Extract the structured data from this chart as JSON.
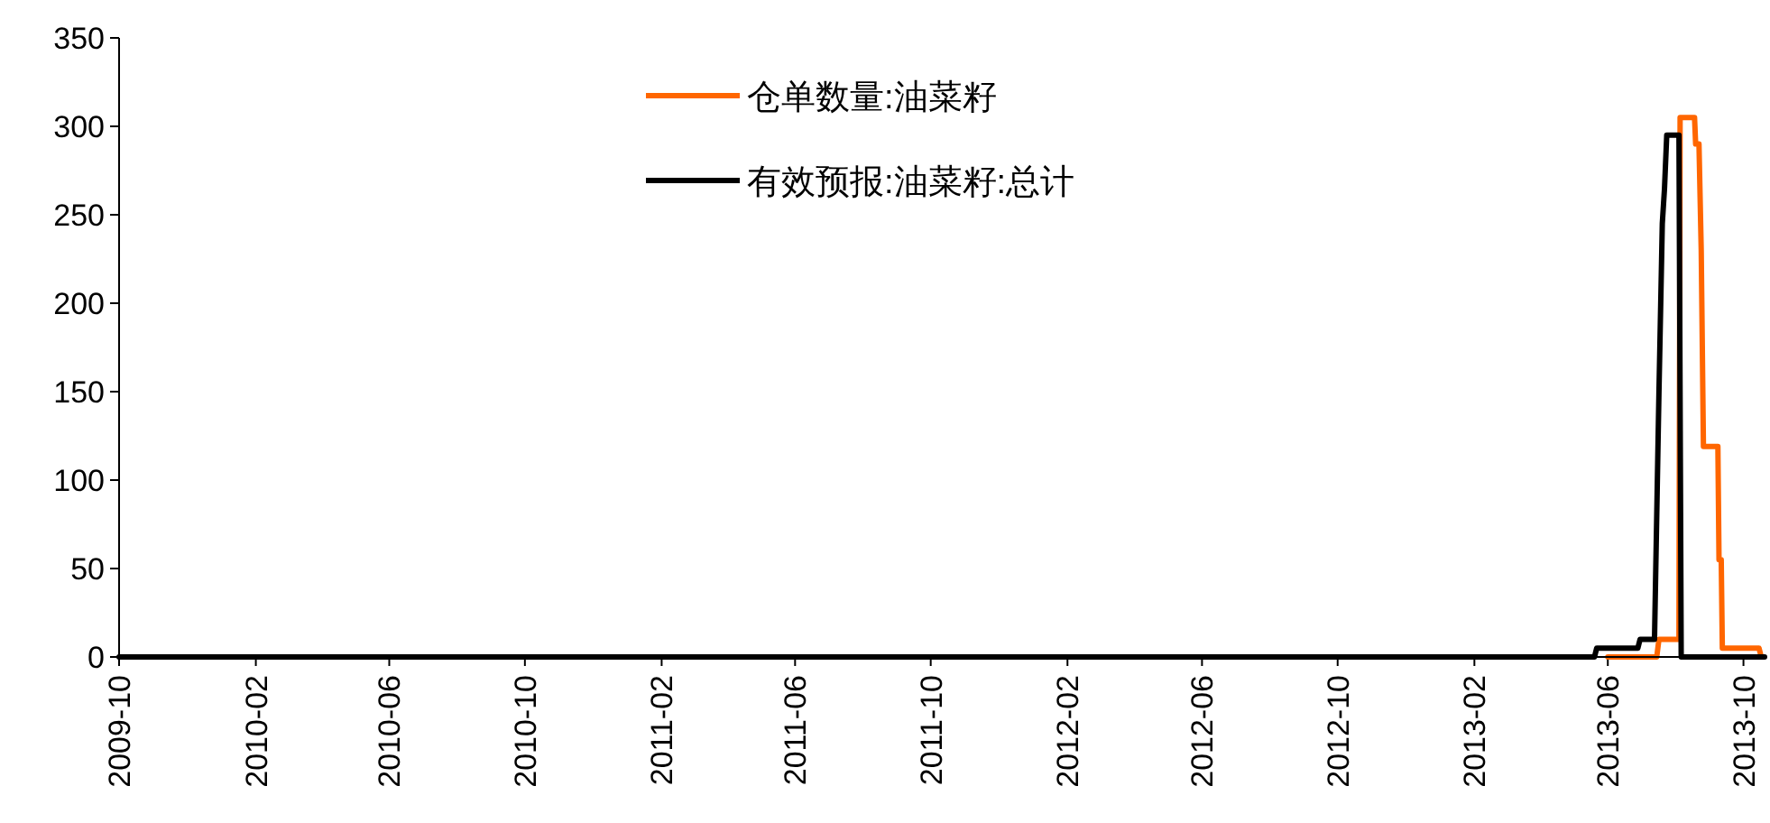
{
  "chart_data": {
    "type": "line",
    "xlim": [
      "2009-10-01",
      "2013-10-20"
    ],
    "ylim": [
      0,
      350
    ],
    "yticks": [
      0,
      50,
      100,
      150,
      200,
      250,
      300,
      350
    ],
    "xticks": [
      "2009-10",
      "2010-02",
      "2010-06",
      "2010-10",
      "2011-02",
      "2011-06",
      "2011-10",
      "2012-02",
      "2012-06",
      "2012-10",
      "2013-02",
      "2013-06",
      "2013-10"
    ],
    "grid": false,
    "legend": "top",
    "line_style": "solid",
    "series": [
      {
        "name": "仓单数量:油菜籽",
        "color": "#ff6600",
        "x": [
          "2013-06-01",
          "2013-07-15",
          "2013-07-17",
          "2013-08-04",
          "2013-08-05",
          "2013-08-18",
          "2013-08-19",
          "2013-08-22",
          "2013-08-24",
          "2013-08-26",
          "2013-09-08",
          "2013-09-09",
          "2013-09-11",
          "2013-09-12",
          "2013-10-15",
          "2013-10-17"
        ],
        "values": [
          0,
          0,
          10,
          10,
          305,
          305,
          290,
          290,
          230,
          119,
          119,
          55,
          55,
          5,
          5,
          0
        ]
      },
      {
        "name": "有效预报:油菜籽:总计",
        "color": "#000000",
        "x": [
          "2009-10-01",
          "2013-05-20",
          "2013-05-22",
          "2013-06-28",
          "2013-06-30",
          "2013-07-13",
          "2013-07-17",
          "2013-07-20",
          "2013-07-22",
          "2013-07-24",
          "2013-08-04",
          "2013-08-06",
          "2013-10-20"
        ],
        "values": [
          0,
          0,
          5,
          5,
          10,
          10,
          150,
          245,
          265,
          295,
          295,
          0,
          0
        ]
      }
    ]
  }
}
